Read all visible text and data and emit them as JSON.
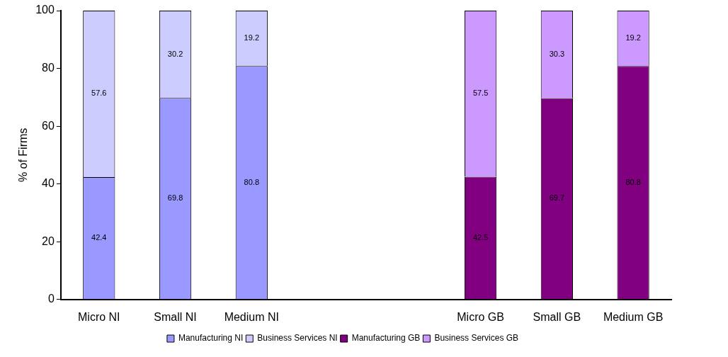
{
  "chart_data": {
    "type": "bar",
    "ylabel": "% of Firms",
    "stacked": true,
    "data_labels": true,
    "legend": "bottom",
    "grid": false,
    "categories": [
      "Micro NI",
      "Small NI",
      "Medium NI",
      null,
      null,
      "Micro GB",
      "Small GB",
      "Medium GB"
    ],
    "ylim": [
      0,
      100
    ],
    "yticks": [
      0,
      20,
      40,
      60,
      80,
      100
    ],
    "series": [
      {
        "name": "Manufacturing NI",
        "color": "#9999ff",
        "values": [
          42.4,
          69.8,
          80.8,
          null,
          null,
          null,
          null,
          null
        ]
      },
      {
        "name": "Business Services NI",
        "color": "#ccccff",
        "values": [
          57.6,
          30.2,
          19.2,
          null,
          null,
          null,
          null,
          null
        ]
      },
      {
        "name": "Manufacturing GB",
        "color": "#800080",
        "values": [
          null,
          null,
          null,
          null,
          null,
          42.5,
          69.7,
          80.8
        ]
      },
      {
        "name": "Business Services GB",
        "color": "#cc99ff",
        "values": [
          null,
          null,
          null,
          null,
          null,
          57.5,
          30.3,
          19.2
        ]
      }
    ]
  }
}
